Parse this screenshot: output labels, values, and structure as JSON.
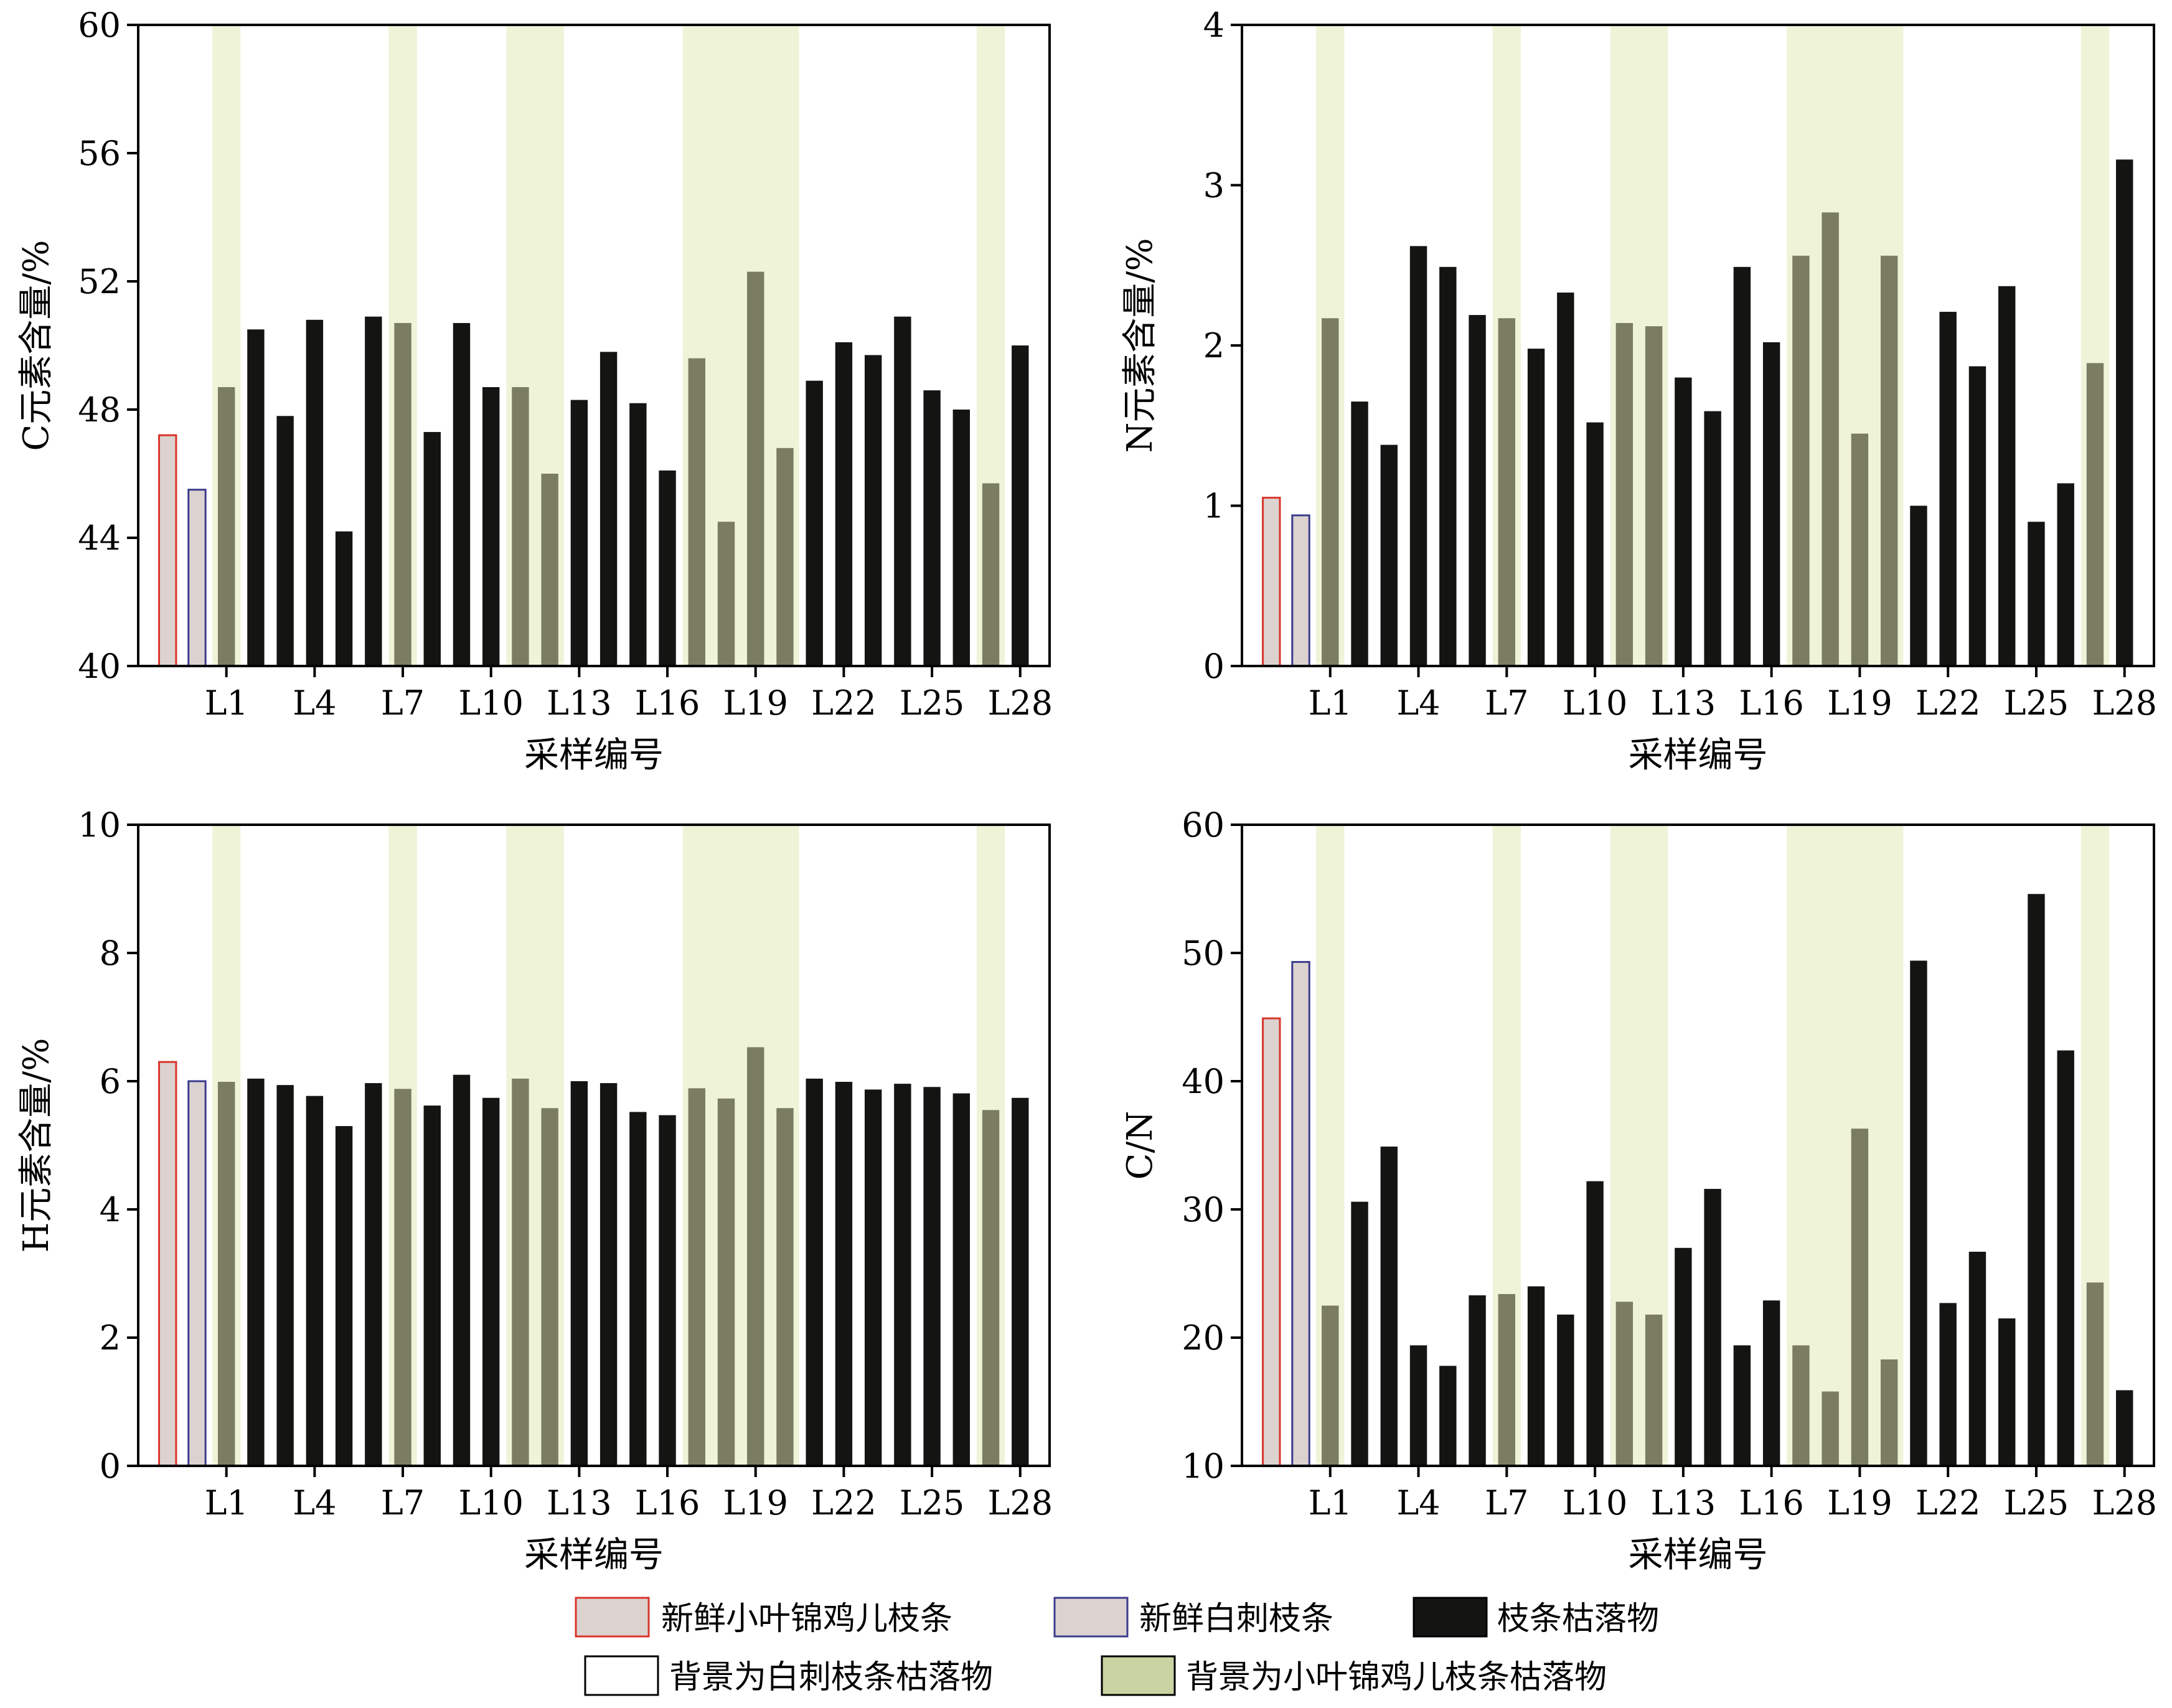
{
  "colors": {
    "fresh_xiaoye": "#dcd3d0",
    "fresh_xiaoye_stroke": "#d9342b",
    "fresh_baici": "#dcd3d0",
    "fresh_baici_stroke": "#3b3b8c",
    "litter": "#141412",
    "litter_on_green": "#7b7d63",
    "green_band": "#eff3d8",
    "legend_green": "#c9d4a2"
  },
  "legend": {
    "item1": "新鲜小叶锦鸡儿枝条",
    "item2": "新鲜白刺枝条",
    "item3": "枝条枯落物",
    "item4": "背景为白刺枝条枯落物",
    "item5": "背景为小叶锦鸡儿枝条枯落物"
  },
  "chart_data": [
    {
      "type": "bar",
      "ylabel": "C元素含量/%",
      "xlabel": "采样编号",
      "ylim": [
        40,
        60
      ],
      "yticks": [
        "40",
        "44",
        "48",
        "52",
        "56",
        "60"
      ],
      "xtick_labels": [
        "L1",
        "L4",
        "L7",
        "L10",
        "L13",
        "L16",
        "L19",
        "L22",
        "L25",
        "L28"
      ],
      "fresh_values": [
        47.2,
        45.5
      ],
      "litter_values": [
        48.7,
        50.5,
        47.8,
        50.8,
        44.2,
        50.9,
        50.7,
        47.3,
        50.7,
        48.7,
        48.7,
        46.0,
        48.3,
        49.8,
        48.2,
        46.1,
        49.6,
        44.5,
        52.3,
        46.8,
        48.9,
        50.1,
        49.7,
        50.9,
        48.6,
        48.0,
        45.7,
        50.0
      ],
      "green_background_samples": [
        "L1",
        "L7",
        "L11",
        "L12",
        "L17",
        "L18",
        "L19",
        "L20",
        "L27"
      ]
    },
    {
      "type": "bar",
      "ylabel": "N元素含量/%",
      "xlabel": "采样编号",
      "ylim": [
        0,
        4
      ],
      "yticks": [
        "0",
        "1",
        "2",
        "3",
        "4"
      ],
      "xtick_labels": [
        "L1",
        "L4",
        "L7",
        "L10",
        "L13",
        "L16",
        "L19",
        "L22",
        "L25",
        "L28"
      ],
      "fresh_values": [
        1.05,
        0.94
      ],
      "litter_values": [
        2.17,
        1.65,
        1.38,
        2.62,
        2.49,
        2.19,
        2.17,
        1.98,
        2.33,
        1.52,
        2.14,
        2.12,
        1.8,
        1.59,
        2.49,
        2.02,
        2.56,
        2.83,
        1.45,
        2.56,
        1.0,
        2.21,
        1.87,
        2.37,
        0.9,
        1.14,
        1.89,
        3.16
      ],
      "green_background_samples": [
        "L1",
        "L7",
        "L11",
        "L12",
        "L17",
        "L18",
        "L19",
        "L20",
        "L27"
      ]
    },
    {
      "type": "bar",
      "ylabel": "H元素含量/%",
      "xlabel": "采样编号",
      "ylim": [
        0,
        10
      ],
      "yticks": [
        "0",
        "2",
        "4",
        "6",
        "8",
        "10"
      ],
      "xtick_labels": [
        "L1",
        "L4",
        "L7",
        "L10",
        "L13",
        "L16",
        "L19",
        "L22",
        "L25",
        "L28"
      ],
      "fresh_values": [
        6.3,
        6.0
      ],
      "litter_values": [
        5.99,
        6.04,
        5.94,
        5.77,
        5.3,
        5.97,
        5.88,
        5.62,
        6.1,
        5.74,
        6.04,
        5.58,
        6.0,
        5.97,
        5.52,
        5.47,
        5.89,
        5.73,
        6.53,
        5.58,
        6.04,
        5.99,
        5.87,
        5.96,
        5.91,
        5.81,
        5.55,
        5.74
      ],
      "green_background_samples": [
        "L1",
        "L7",
        "L11",
        "L12",
        "L17",
        "L18",
        "L19",
        "L20",
        "L27"
      ]
    },
    {
      "type": "bar",
      "ylabel": "C/N",
      "xlabel": "采样编号",
      "ylim": [
        10,
        60
      ],
      "yticks": [
        "10",
        "20",
        "30",
        "40",
        "50",
        "60"
      ],
      "xtick_labels": [
        "L1",
        "L4",
        "L7",
        "L10",
        "L13",
        "L16",
        "L19",
        "L22",
        "L25",
        "L28"
      ],
      "fresh_values": [
        44.9,
        49.3
      ],
      "litter_values": [
        22.5,
        30.6,
        34.9,
        19.4,
        17.8,
        23.3,
        23.4,
        24.0,
        21.8,
        32.2,
        22.8,
        21.8,
        27.0,
        31.6,
        19.4,
        22.9,
        19.4,
        15.8,
        36.3,
        18.3,
        49.4,
        22.7,
        26.7,
        21.5,
        54.6,
        42.4,
        24.3,
        15.9
      ],
      "green_background_samples": [
        "L1",
        "L7",
        "L11",
        "L12",
        "L17",
        "L18",
        "L19",
        "L20",
        "L27"
      ]
    }
  ]
}
